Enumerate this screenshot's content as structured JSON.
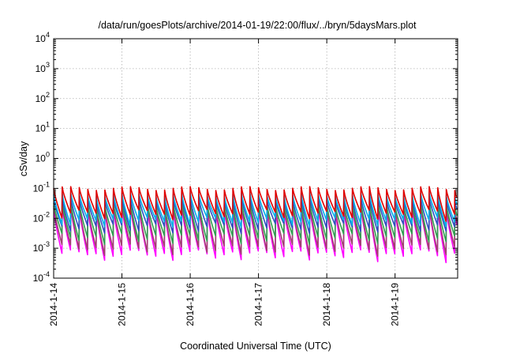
{
  "chart_data": {
    "type": "line",
    "title": "/data/run/goesPlots/archive/2014-01-19/22:00/flux/../bryn/5daysMars.plot",
    "xlabel": "Coordinated Universal Time (UTC)",
    "ylabel": "cSv/day",
    "yscale": "log",
    "ylim": [
      0.0001,
      10000
    ],
    "xlim": [
      "2014-01-14",
      "2014-01-19 22:00"
    ],
    "x_ticks": [
      "2014-1-14",
      "2014-1-15",
      "2014-1-16",
      "2014-1-17",
      "2014-1-18",
      "2014-1-19"
    ],
    "y_ticks": [
      {
        "base": "10",
        "exp": "-4"
      },
      {
        "base": "10",
        "exp": "-3"
      },
      {
        "base": "10",
        "exp": "-2"
      },
      {
        "base": "10",
        "exp": "-1"
      },
      {
        "base": "10",
        "exp": "0"
      },
      {
        "base": "10",
        "exp": "1"
      },
      {
        "base": "10",
        "exp": "2"
      },
      {
        "base": "10",
        "exp": "3"
      },
      {
        "base": "10",
        "exp": "4"
      }
    ],
    "grid": true,
    "legend": "none",
    "sawtooth_period_hours": 3,
    "series": [
      {
        "color": "#ff00ff",
        "peak": 0.022,
        "trough": 0.0009
      },
      {
        "color": "#a04070",
        "peak": 0.026,
        "trough": 0.0014
      },
      {
        "color": "#30a050",
        "peak": 0.032,
        "trough": 0.0032
      },
      {
        "color": "#3050c0",
        "peak": 0.045,
        "trough": 0.007
      },
      {
        "color": "#00b0e8",
        "peak": 0.062,
        "trough": 0.011
      },
      {
        "color": "#e00000",
        "peak": 0.1,
        "trough": 0.02
      }
    ]
  }
}
